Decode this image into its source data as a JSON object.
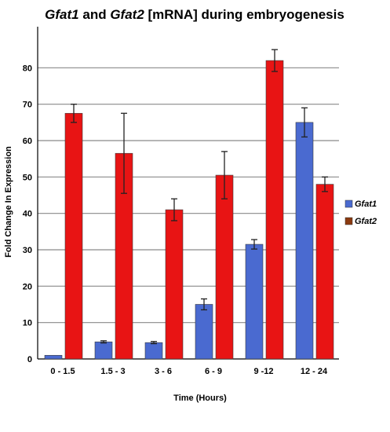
{
  "chart_data": {
    "type": "bar",
    "title_parts": [
      {
        "text": "Gfat1",
        "italic": true
      },
      {
        "text": " and ",
        "italic": false
      },
      {
        "text": "Gfat2",
        "italic": true
      },
      {
        "text": " [mRNA] during embryogenesis",
        "italic": false
      }
    ],
    "xlabel": "Time (Hours)",
    "ylabel": "Fold Change In Expression",
    "categories": [
      "0 - 1.5",
      "1.5 - 3",
      "3 - 6",
      "6 - 9",
      "9 -12",
      "12 - 24"
    ],
    "ylim": [
      0,
      90
    ],
    "yticks": [
      0,
      10,
      20,
      30,
      40,
      50,
      60,
      70,
      80
    ],
    "grid": true,
    "legend_position": "right",
    "series": [
      {
        "name": "Gfat1",
        "color": "#4a6ad0",
        "values": [
          1,
          4.7,
          4.5,
          15,
          31.5,
          65
        ],
        "errors": [
          0,
          0.3,
          0.3,
          1.5,
          1.3,
          4
        ]
      },
      {
        "name": "Gfat2",
        "color": "#e81414",
        "values": [
          67.5,
          56.5,
          41,
          50.5,
          82,
          48
        ],
        "errors": [
          2.5,
          11,
          3,
          6.5,
          3,
          2
        ]
      }
    ]
  }
}
